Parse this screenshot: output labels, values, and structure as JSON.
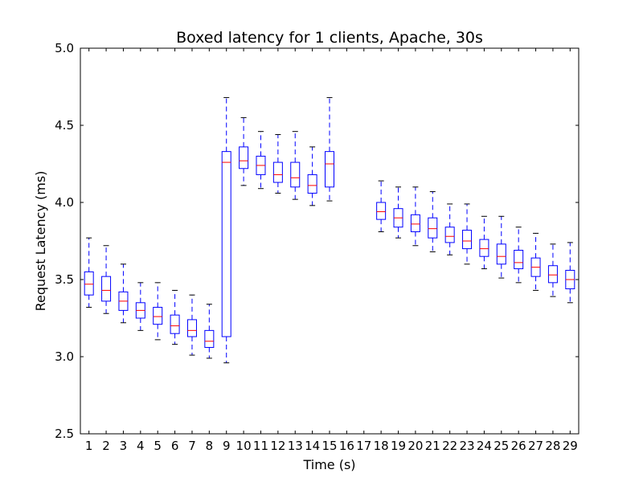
{
  "chart_data": {
    "type": "boxplot",
    "title": "Boxed latency for 1 clients, Apache, 30s",
    "xlabel": "Time (s)",
    "ylabel": "Request Latency (ms)",
    "ylim": [
      2.5,
      5.0
    ],
    "yticks": [
      "2.5",
      "3.0",
      "3.5",
      "4.0",
      "4.5",
      "5.0"
    ],
    "x_positions": [
      1,
      2,
      3,
      4,
      5,
      6,
      7,
      8,
      9,
      10,
      11,
      12,
      13,
      14,
      15,
      16,
      17,
      18,
      19,
      20,
      21,
      22,
      23,
      24,
      25,
      26,
      27,
      28,
      29
    ],
    "xlim": [
      0.5,
      29.5
    ],
    "grid": false,
    "colors": {
      "box": "#0000ff",
      "median": "#ff0000",
      "whisker": "#0000ff",
      "cap": "#000000"
    },
    "boxes": [
      {
        "x": 1,
        "whislo": 3.32,
        "q1": 3.4,
        "med": 3.47,
        "q3": 3.55,
        "whishi": 3.77
      },
      {
        "x": 2,
        "whislo": 3.28,
        "q1": 3.36,
        "med": 3.43,
        "q3": 3.52,
        "whishi": 3.72
      },
      {
        "x": 3,
        "whislo": 3.22,
        "q1": 3.3,
        "med": 3.36,
        "q3": 3.42,
        "whishi": 3.6
      },
      {
        "x": 4,
        "whislo": 3.17,
        "q1": 3.25,
        "med": 3.3,
        "q3": 3.35,
        "whishi": 3.48
      },
      {
        "x": 5,
        "whislo": 3.11,
        "q1": 3.21,
        "med": 3.26,
        "q3": 3.32,
        "whishi": 3.48
      },
      {
        "x": 6,
        "whislo": 3.08,
        "q1": 3.15,
        "med": 3.2,
        "q3": 3.27,
        "whishi": 3.43
      },
      {
        "x": 7,
        "whislo": 3.01,
        "q1": 3.13,
        "med": 3.17,
        "q3": 3.24,
        "whishi": 3.4
      },
      {
        "x": 8,
        "whislo": 2.99,
        "q1": 3.06,
        "med": 3.1,
        "q3": 3.17,
        "whishi": 3.34
      },
      {
        "x": 9,
        "whislo": 2.96,
        "q1": 3.13,
        "med": 4.26,
        "q3": 4.33,
        "whishi": 4.68
      },
      {
        "x": 10,
        "whislo": 4.11,
        "q1": 4.22,
        "med": 4.27,
        "q3": 4.36,
        "whishi": 4.55
      },
      {
        "x": 11,
        "whislo": 4.09,
        "q1": 4.18,
        "med": 4.24,
        "q3": 4.3,
        "whishi": 4.46
      },
      {
        "x": 12,
        "whislo": 4.06,
        "q1": 4.13,
        "med": 4.18,
        "q3": 4.26,
        "whishi": 4.44
      },
      {
        "x": 13,
        "whislo": 4.02,
        "q1": 4.1,
        "med": 4.16,
        "q3": 4.26,
        "whishi": 4.46
      },
      {
        "x": 14,
        "whislo": 3.98,
        "q1": 4.06,
        "med": 4.11,
        "q3": 4.18,
        "whishi": 4.36
      },
      {
        "x": 15,
        "whislo": 4.01,
        "q1": 4.1,
        "med": 4.25,
        "q3": 4.33,
        "whishi": 4.68
      },
      {
        "x": 18,
        "whislo": 3.81,
        "q1": 3.89,
        "med": 3.94,
        "q3": 4.0,
        "whishi": 4.14
      },
      {
        "x": 19,
        "whislo": 3.77,
        "q1": 3.84,
        "med": 3.9,
        "q3": 3.96,
        "whishi": 4.1
      },
      {
        "x": 20,
        "whislo": 3.72,
        "q1": 3.81,
        "med": 3.86,
        "q3": 3.92,
        "whishi": 4.1
      },
      {
        "x": 21,
        "whislo": 3.68,
        "q1": 3.77,
        "med": 3.83,
        "q3": 3.9,
        "whishi": 4.07
      },
      {
        "x": 22,
        "whislo": 3.66,
        "q1": 3.74,
        "med": 3.78,
        "q3": 3.84,
        "whishi": 3.99
      },
      {
        "x": 23,
        "whislo": 3.6,
        "q1": 3.7,
        "med": 3.75,
        "q3": 3.82,
        "whishi": 3.99
      },
      {
        "x": 24,
        "whislo": 3.57,
        "q1": 3.65,
        "med": 3.7,
        "q3": 3.76,
        "whishi": 3.91
      },
      {
        "x": 25,
        "whislo": 3.51,
        "q1": 3.6,
        "med": 3.65,
        "q3": 3.73,
        "whishi": 3.91
      },
      {
        "x": 26,
        "whislo": 3.48,
        "q1": 3.57,
        "med": 3.61,
        "q3": 3.69,
        "whishi": 3.84
      },
      {
        "x": 27,
        "whislo": 3.43,
        "q1": 3.52,
        "med": 3.58,
        "q3": 3.64,
        "whishi": 3.8
      },
      {
        "x": 28,
        "whislo": 3.39,
        "q1": 3.48,
        "med": 3.53,
        "q3": 3.59,
        "whishi": 3.73
      },
      {
        "x": 29,
        "whislo": 3.35,
        "q1": 3.44,
        "med": 3.5,
        "q3": 3.56,
        "whishi": 3.74
      }
    ]
  }
}
